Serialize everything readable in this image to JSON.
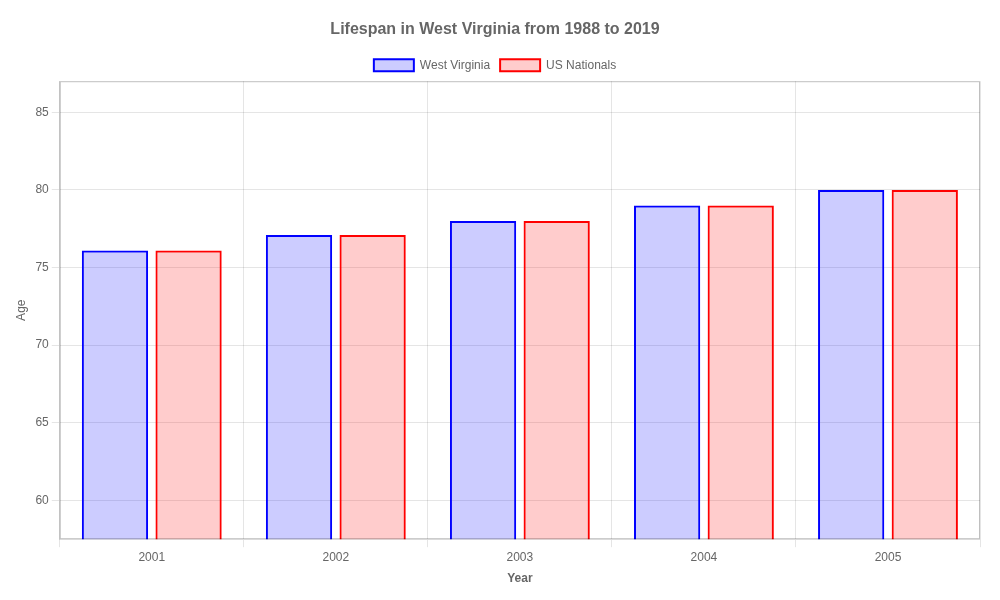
{
  "chart_data": {
    "type": "bar",
    "title": "Lifespan in West Virginia from 1988 to 2019",
    "xlabel": "Year",
    "ylabel": "Age",
    "categories": [
      "2001",
      "2002",
      "2003",
      "2004",
      "2005"
    ],
    "series": [
      {
        "name": "West Virginia",
        "color": "#0000ff",
        "values": [
          76.1,
          77.1,
          78.0,
          79.0,
          80.0
        ]
      },
      {
        "name": "US Nationals",
        "color": "#ff0000",
        "values": [
          76.1,
          77.1,
          78.0,
          79.0,
          80.0
        ]
      }
    ],
    "ylim": [
      57.5,
      87
    ],
    "yticks": [
      60,
      65,
      70,
      75,
      80,
      85
    ],
    "grid": true,
    "legend": "top"
  }
}
